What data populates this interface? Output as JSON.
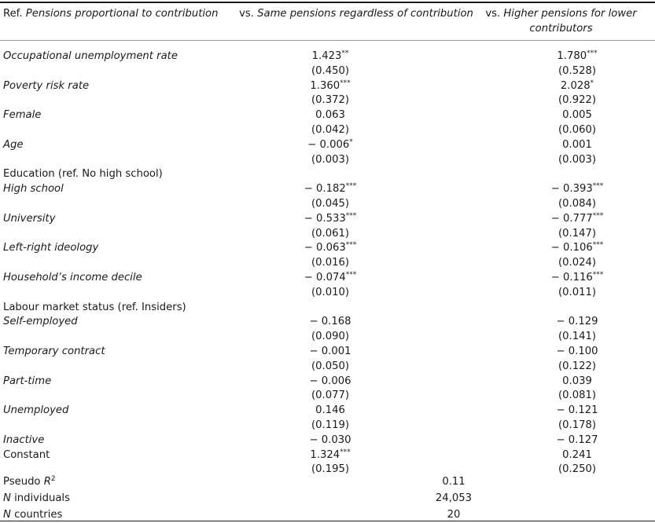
{
  "table": {
    "header": {
      "ref_prefix": "Ref. ",
      "ref_label": "Pensions proportional to contribution",
      "col1_prefix": "vs. ",
      "col1_label": "Same pensions regardless of contribution",
      "col2_prefix": "vs. ",
      "col2_label": "Higher pensions for lower contributors"
    },
    "rows": [
      {
        "label": "Occupational unemployment rate",
        "italic": true,
        "c1": "1.423",
        "c1_stars": "**",
        "c2": "1.780",
        "c2_stars": "***"
      },
      {
        "label": "",
        "c1": "(0.450)",
        "c2": "(0.528)"
      },
      {
        "label": "Poverty risk rate",
        "italic": true,
        "c1": "1.360",
        "c1_stars": "***",
        "c2": "2.028",
        "c2_stars": "*"
      },
      {
        "label": "",
        "c1": "(0.372)",
        "c2": "(0.922)"
      },
      {
        "label": "Female",
        "italic": true,
        "c1": "0.063",
        "c1_stars": "",
        "c2": "0.005",
        "c2_stars": ""
      },
      {
        "label": "",
        "c1": "(0.042)",
        "c2": "(0.060)"
      },
      {
        "label": "Age",
        "italic": true,
        "c1": "− 0.006",
        "c1_stars": "*",
        "c2": "0.001",
        "c2_stars": ""
      },
      {
        "label": "",
        "c1": "(0.003)",
        "c2": "(0.003)"
      },
      {
        "label": "Education (ref. No high school)",
        "italic": false,
        "c1": "",
        "c2": ""
      },
      {
        "label": "High school",
        "italic": true,
        "c1": "− 0.182",
        "c1_stars": "***",
        "c2": "− 0.393",
        "c2_stars": "***"
      },
      {
        "label": "",
        "c1": "(0.045)",
        "c2": "(0.084)"
      },
      {
        "label": "University",
        "italic": true,
        "c1": "− 0.533",
        "c1_stars": "***",
        "c2": "− 0.777",
        "c2_stars": "***"
      },
      {
        "label": "",
        "c1": "(0.061)",
        "c2": "(0.147)"
      },
      {
        "label": "Left-right ideology",
        "italic": true,
        "c1": "− 0.063",
        "c1_stars": "***",
        "c2": "− 0.106",
        "c2_stars": "***"
      },
      {
        "label": "",
        "c1": "(0.016)",
        "c2": "(0.024)"
      },
      {
        "label": "Household’s income decile",
        "italic": true,
        "c1": "− 0.074",
        "c1_stars": "***",
        "c2": "− 0.116",
        "c2_stars": "***"
      },
      {
        "label": "",
        "c1": "(0.010)",
        "c2": "(0.011)"
      },
      {
        "label": "Labour market status (ref. Insiders)",
        "italic": false,
        "c1": "",
        "c2": ""
      },
      {
        "label": "Self-employed",
        "italic": true,
        "c1": "− 0.168",
        "c1_stars": "",
        "c2": "− 0.129",
        "c2_stars": ""
      },
      {
        "label": "",
        "c1": "(0.090)",
        "c2": "(0.141)"
      },
      {
        "label": "Temporary contract",
        "italic": true,
        "c1": "− 0.001",
        "c1_stars": "",
        "c2": "− 0.100",
        "c2_stars": ""
      },
      {
        "label": "",
        "c1": "(0.050)",
        "c2": "(0.122)"
      },
      {
        "label": "Part-time",
        "italic": true,
        "c1": "− 0.006",
        "c1_stars": "",
        "c2": "0.039",
        "c2_stars": ""
      },
      {
        "label": "",
        "c1": "(0.077)",
        "c2": "(0.081)"
      },
      {
        "label": "Unemployed",
        "italic": true,
        "c1": "0.146",
        "c1_stars": "",
        "c2": "− 0.121",
        "c2_stars": ""
      },
      {
        "label": "",
        "c1": "(0.119)",
        "c2": "(0.178)"
      },
      {
        "label": "Inactive",
        "italic": true,
        "c1": "− 0.030",
        "c1_stars": "",
        "c2": "− 0.127",
        "c2_stars": ""
      },
      {
        "label": "Constant",
        "italic": false,
        "c1": "1.324",
        "c1_stars": "***",
        "c2": "0.241",
        "c2_stars": ""
      },
      {
        "label": "",
        "c1": "(0.195)",
        "c2": "(0.250)"
      }
    ],
    "footer": {
      "pseudo_r2_label": "Pseudo ",
      "pseudo_r2_symbol": "R",
      "pseudo_r2_sup": "2",
      "pseudo_r2_value": "0.11",
      "n_individuals_symbol": "N",
      "n_individuals_label": " individuals",
      "n_individuals_value": "24,053",
      "n_countries_symbol": "N",
      "n_countries_label": " countries",
      "n_countries_value": "20"
    }
  }
}
